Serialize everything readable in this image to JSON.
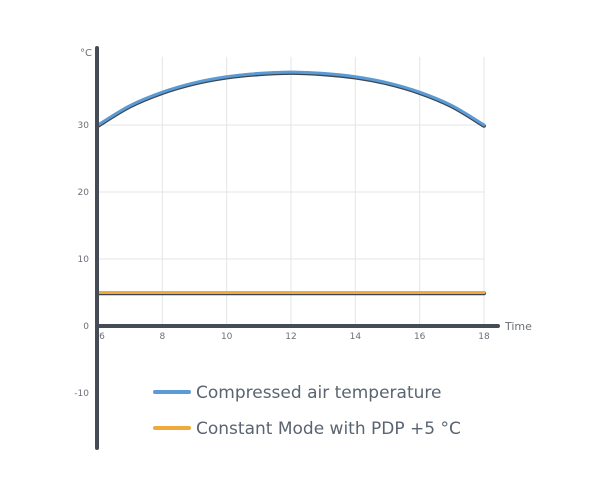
{
  "chart_data": {
    "type": "line",
    "title": "",
    "xlabel": "Time",
    "ylabel": "°C",
    "xlim": [
      6,
      18
    ],
    "ylim": [
      -18,
      42
    ],
    "x_ticks": [
      6,
      8,
      10,
      12,
      14,
      16,
      18
    ],
    "y_ticks": [
      30,
      20,
      10,
      0,
      -10
    ],
    "x_tick_labels": [
      "6",
      "8",
      "10",
      "12",
      "14",
      "16",
      "18"
    ],
    "y_tick_labels": [
      "30",
      "20",
      "10",
      "0",
      "-10"
    ],
    "grid": true,
    "series": [
      {
        "name": "Compressed air temperature",
        "color": "#5b9bd5",
        "x": [
          6,
          7,
          8,
          9,
          10,
          11,
          12,
          13,
          14,
          15,
          16,
          17,
          18
        ],
        "values": [
          30,
          32.9,
          34.9,
          36.3,
          37.2,
          37.7,
          37.9,
          37.7,
          37.2,
          36.3,
          34.9,
          32.9,
          30
        ]
      },
      {
        "name": "Constant Mode with PDP +5 °C",
        "color": "#f0a93b",
        "x": [
          6,
          18
        ],
        "values": [
          5,
          5
        ]
      }
    ],
    "legend_position": "bottom"
  }
}
